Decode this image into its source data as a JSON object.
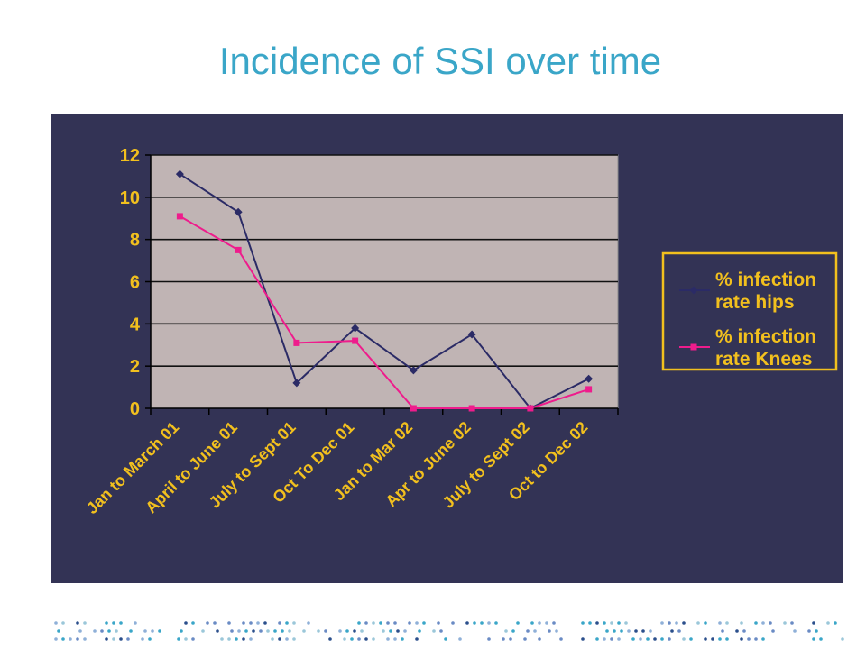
{
  "slide": {
    "title": "Incidence of SSI over time"
  },
  "chart_data": {
    "type": "line",
    "title": "",
    "xlabel": "",
    "ylabel": "",
    "ylim": [
      0,
      12
    ],
    "yticks": [
      0,
      2,
      4,
      6,
      8,
      10,
      12
    ],
    "grid": true,
    "legend_position": "right",
    "categories": [
      "Jan to March 01",
      "April to June 01",
      "July to Sept 01",
      "Oct To Dec 01",
      "Jan to Mar 02",
      "Apr to June 02",
      "July to Sept 02",
      "Oct to Dec 02"
    ],
    "series": [
      {
        "name": "% infection rate hips",
        "values": [
          11.1,
          9.3,
          1.2,
          3.8,
          1.8,
          3.5,
          0,
          1.4
        ],
        "color": "#2b2b66",
        "marker": "diamond"
      },
      {
        "name": "% infection rate Knees",
        "values": [
          9.1,
          7.5,
          3.1,
          3.2,
          0,
          0,
          0,
          0.9
        ],
        "color": "#ee1c8c",
        "marker": "square"
      }
    ]
  },
  "colors": {
    "panel_bg": "#333355",
    "plot_bg": "#c0b4b4",
    "label_color": "#f2c01e",
    "title_color": "#3aa6c8"
  }
}
